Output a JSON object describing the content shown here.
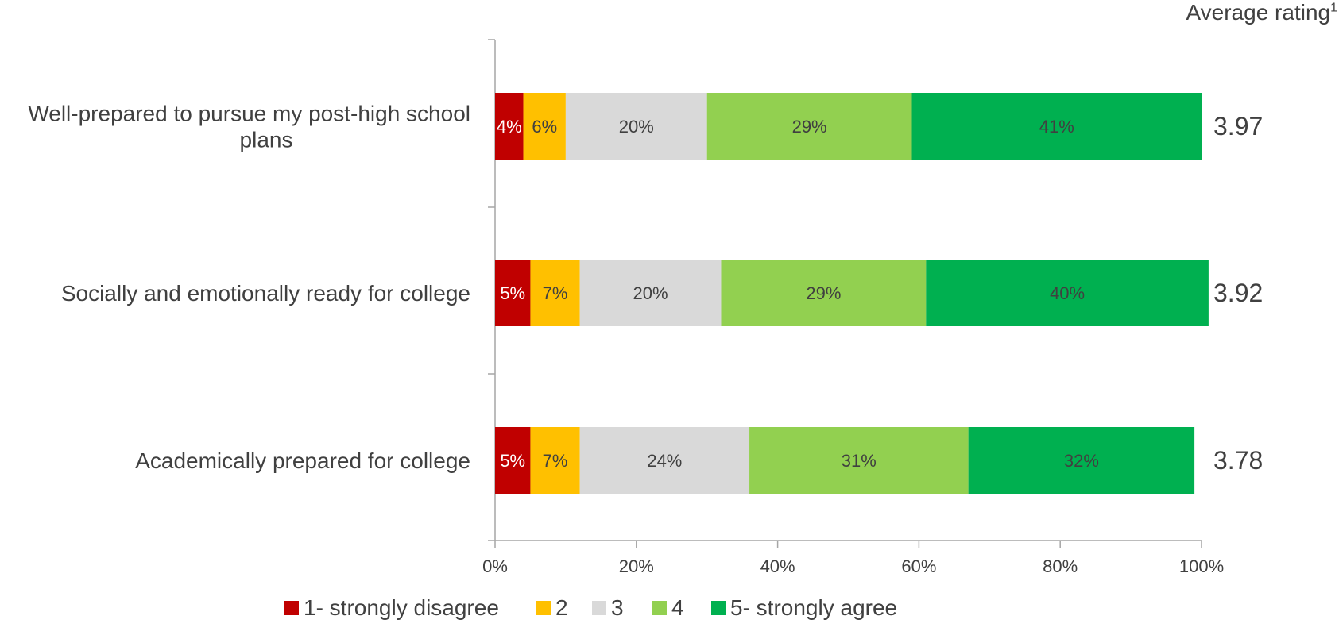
{
  "chart_data": {
    "type": "bar",
    "orientation": "horizontal",
    "stacked": true,
    "title": "",
    "xlabel": "",
    "ylabel": "",
    "xlim": [
      0,
      100
    ],
    "x_ticks": [
      "0%",
      "20%",
      "40%",
      "60%",
      "80%",
      "100%"
    ],
    "categories": [
      "Well-prepared to pursue my post-high school plans",
      "Socially and emotionally ready for college",
      "Academically prepared for college"
    ],
    "category_lines": [
      [
        "Well-prepared to pursue my post-high school",
        "plans"
      ],
      [
        "Socially and emotionally ready for college"
      ],
      [
        "Academically prepared for college"
      ]
    ],
    "series": [
      {
        "name": "1- strongly disagree",
        "color": "#C00000",
        "label_color": "#ffffff",
        "values": [
          4,
          5,
          5
        ]
      },
      {
        "name": "2",
        "color": "#FFC000",
        "label_color": "#404040",
        "values": [
          6,
          7,
          7
        ]
      },
      {
        "name": "3",
        "color": "#D9D9D9",
        "label_color": "#404040",
        "values": [
          20,
          20,
          24
        ]
      },
      {
        "name": "4",
        "color": "#92D050",
        "label_color": "#404040",
        "values": [
          29,
          29,
          31
        ]
      },
      {
        "name": "5- strongly agree",
        "color": "#00B050",
        "label_color": "#404040",
        "values": [
          41,
          40,
          32
        ]
      }
    ],
    "display_values": [
      [
        4,
        6,
        20,
        29,
        41
      ],
      [
        5,
        7,
        20,
        29,
        40
      ],
      [
        5,
        7,
        24,
        31,
        32
      ]
    ],
    "average_rating": {
      "header": "Average rating",
      "footnote_marker": "1",
      "values": [
        "3.97",
        "3.92",
        "3.78"
      ]
    },
    "legend": {
      "position": "bottom"
    },
    "grid": false
  }
}
